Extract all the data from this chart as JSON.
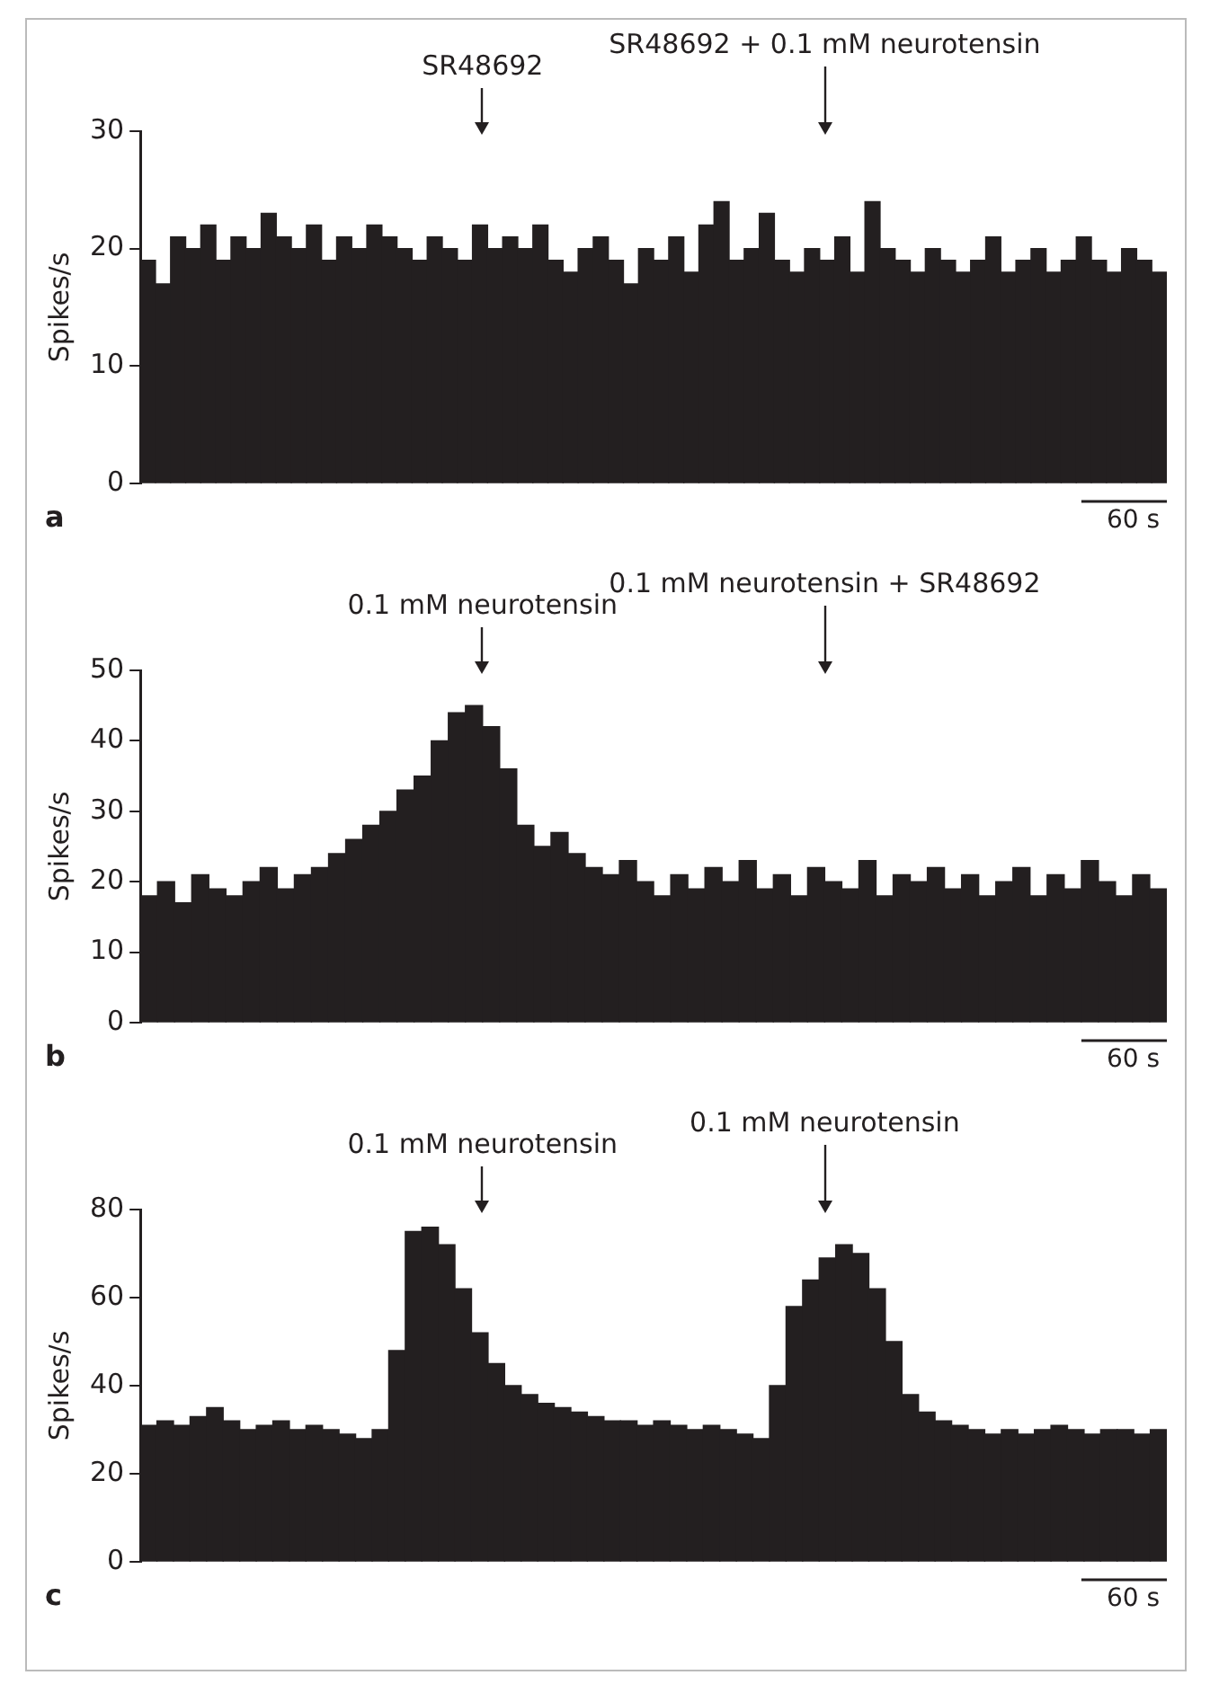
{
  "chart_data": [
    {
      "type": "bar",
      "ylabel": "Spikes/s",
      "color": "#231f20",
      "tick_labels": "y",
      "categories": [
        null,
        null,
        null,
        null,
        null,
        null,
        null,
        null,
        null,
        null,
        null,
        null,
        null,
        null,
        null,
        null,
        null,
        null,
        null,
        null,
        null,
        null,
        null,
        null,
        null,
        null,
        null,
        null,
        null,
        null,
        null,
        null,
        null,
        null,
        null,
        null,
        null,
        null,
        null,
        null,
        null,
        null,
        null,
        null,
        null,
        null,
        null,
        null,
        null,
        null,
        null,
        null,
        null,
        null,
        null,
        null,
        null,
        null,
        null,
        null,
        null,
        null,
        null,
        null,
        null,
        null,
        null,
        null
      ],
      "values": [
        19,
        17,
        21,
        20,
        22,
        19,
        21,
        20,
        23,
        21,
        20,
        22,
        19,
        21,
        20,
        22,
        21,
        20,
        19,
        21,
        20,
        19,
        22,
        20,
        21,
        20,
        22,
        19,
        18,
        20,
        21,
        19,
        17,
        20,
        19,
        21,
        18,
        22,
        24,
        19,
        20,
        23,
        19,
        18,
        20,
        19,
        21,
        18,
        24,
        20,
        19,
        18,
        20,
        19,
        18,
        19,
        21,
        18,
        19,
        20,
        18,
        19,
        21,
        19,
        18,
        20,
        19,
        18
      ],
      "ylim": [
        0,
        30
      ],
      "yticks": [
        0,
        10,
        20,
        30
      ],
      "annotations": [
        "a",
        "60 s",
        "SR48692",
        "SR48692 + 0.1 mM neurotensin"
      ]
    },
    {
      "type": "bar",
      "ylabel": "Spikes/s",
      "color": "#231f20",
      "tick_labels": "y",
      "categories": [
        null,
        null,
        null,
        null,
        null,
        null,
        null,
        null,
        null,
        null,
        null,
        null,
        null,
        null,
        null,
        null,
        null,
        null,
        null,
        null,
        null,
        null,
        null,
        null,
        null,
        null,
        null,
        null,
        null,
        null,
        null,
        null,
        null,
        null,
        null,
        null,
        null,
        null,
        null,
        null,
        null,
        null,
        null,
        null,
        null,
        null,
        null,
        null,
        null,
        null,
        null,
        null,
        null,
        null,
        null,
        null,
        null,
        null,
        null,
        null
      ],
      "values": [
        18,
        20,
        17,
        21,
        19,
        18,
        20,
        22,
        19,
        21,
        22,
        24,
        26,
        28,
        30,
        33,
        35,
        40,
        44,
        45,
        42,
        36,
        28,
        25,
        27,
        24,
        22,
        21,
        23,
        20,
        18,
        21,
        19,
        22,
        20,
        23,
        19,
        21,
        18,
        22,
        20,
        19,
        23,
        18,
        21,
        20,
        22,
        19,
        21,
        18,
        20,
        22,
        18,
        21,
        19,
        23,
        20,
        18,
        21,
        19
      ],
      "ylim": [
        0,
        50
      ],
      "yticks": [
        0,
        10,
        20,
        30,
        40,
        50
      ],
      "annotations": [
        "b",
        "60 s",
        "0.1 mM neurotensin",
        "0.1 mM neurotensin + SR48692"
      ]
    },
    {
      "type": "bar",
      "ylabel": "Spikes/s",
      "color": "#231f20",
      "tick_labels": "y",
      "categories": [
        null,
        null,
        null,
        null,
        null,
        null,
        null,
        null,
        null,
        null,
        null,
        null,
        null,
        null,
        null,
        null,
        null,
        null,
        null,
        null,
        null,
        null,
        null,
        null,
        null,
        null,
        null,
        null,
        null,
        null,
        null,
        null,
        null,
        null,
        null,
        null,
        null,
        null,
        null,
        null,
        null,
        null,
        null,
        null,
        null,
        null,
        null,
        null,
        null,
        null,
        null,
        null,
        null,
        null,
        null,
        null,
        null,
        null,
        null,
        null,
        null,
        null
      ],
      "values": [
        31,
        32,
        31,
        33,
        35,
        32,
        30,
        31,
        32,
        30,
        31,
        30,
        29,
        28,
        30,
        48,
        75,
        76,
        72,
        62,
        52,
        45,
        40,
        38,
        36,
        35,
        34,
        33,
        32,
        32,
        31,
        32,
        31,
        30,
        31,
        30,
        29,
        28,
        40,
        58,
        64,
        69,
        72,
        70,
        62,
        50,
        38,
        34,
        32,
        31,
        30,
        29,
        30,
        29,
        30,
        31,
        30,
        29,
        30,
        30,
        29,
        30
      ],
      "ylim": [
        0,
        80
      ],
      "yticks": [
        0,
        20,
        40,
        60,
        80
      ],
      "annotations": [
        "c",
        "60 s",
        "0.1 mM neurotensin",
        "0.1 mM neurotensin"
      ]
    }
  ]
}
